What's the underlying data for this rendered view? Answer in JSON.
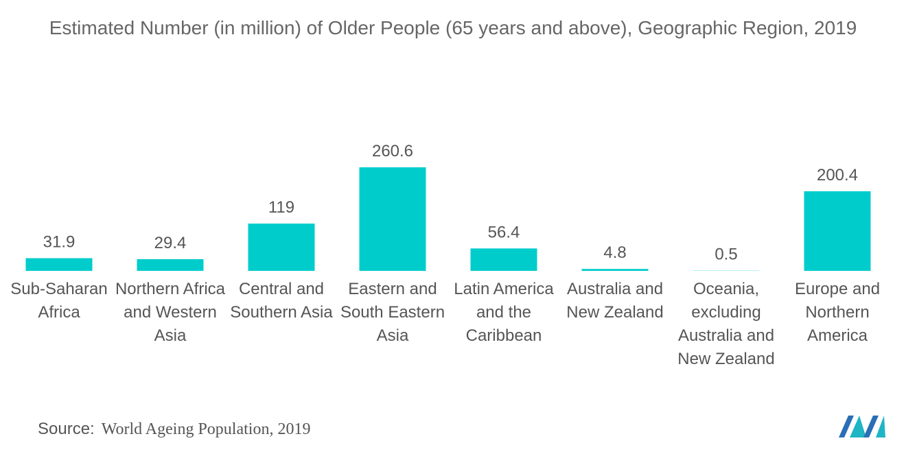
{
  "chart_data": {
    "type": "bar",
    "title": "Estimated Number (in million) of Older People (65 years and above), Geographic Region, 2019",
    "categories": [
      "Sub-Saharan Africa",
      "Northern Africa and Western Asia",
      "Central and Southern Asia",
      "Eastern and South Eastern Asia",
      "Latin America and the Caribbean",
      "Australia and New Zealand",
      "Oceania, excluding Australia and New Zealand",
      "Europe and Northern America"
    ],
    "values": [
      31.9,
      29.4,
      119,
      260.6,
      56.4,
      4.8,
      0.5,
      200.4
    ],
    "color": "#00cccc",
    "source_label": "Source:",
    "source": "World Ageing Population, 2019"
  }
}
